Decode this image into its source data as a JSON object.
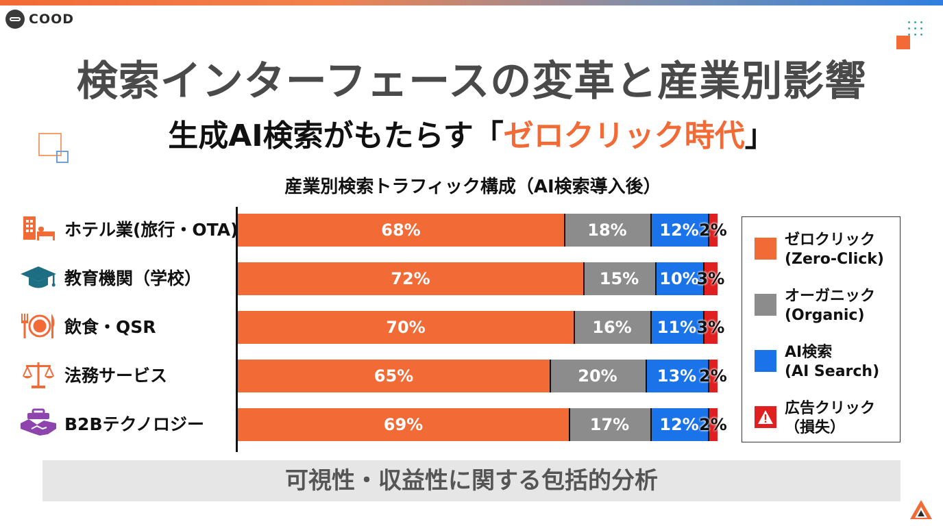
{
  "brand": {
    "logo_text": "COOD"
  },
  "title": "検索インターフェースの変革と産業別影響",
  "subtitle": {
    "prefix": "生成AI検索がもたらす「",
    "highlight": "ゼロクリック時代",
    "suffix": "」"
  },
  "footer": "可視性・収益性に関する包括的分析",
  "colors": {
    "zero_click": "#f26a35",
    "organic": "#8c8c8c",
    "ai_search": "#1a73e8",
    "ad_click": "#e02020",
    "title_gray": "#4a4a4a",
    "icon_orange": "#f26a35",
    "icon_teal": "#1e6e83",
    "icon_purple": "#8e44ad"
  },
  "categories": [
    {
      "label": "ホテル業(旅行・OTA)",
      "icon": "hotel-bed-icon"
    },
    {
      "label": "教育機関（学校）",
      "icon": "graduation-cap-icon"
    },
    {
      "label": "飲食・QSR",
      "icon": "dining-plate-icon"
    },
    {
      "label": "法務サービス",
      "icon": "scales-icon"
    },
    {
      "label": "B2Bテクノロジー",
      "icon": "handshake-briefcase-icon"
    }
  ],
  "legend": [
    {
      "line1": "ゼロクリック",
      "line2": "(Zero-Click)",
      "icon": "orange-square-icon"
    },
    {
      "line1": "オーガニック",
      "line2": "(Organic)",
      "icon": "gray-square-icon"
    },
    {
      "line1": "AI検索",
      "line2": "(AI Search)",
      "icon": "blue-square-icon"
    },
    {
      "line1": "広告クリック",
      "line2": "（損失）",
      "icon": "warning-triangle-icon"
    }
  ],
  "chart_data": {
    "type": "bar",
    "orientation": "horizontal",
    "stacked": true,
    "title": "産業別検索トラフィック構成（AI検索導入後）",
    "categories": [
      "ホテル業(旅行・OTA)",
      "教育機関（学校）",
      "飲食・QSR",
      "法務サービス",
      "B2Bテクノロジー"
    ],
    "series": [
      {
        "name": "ゼロクリック (Zero-Click)",
        "values": [
          68,
          72,
          70,
          65,
          69
        ],
        "labels": [
          "68%",
          "72%",
          "70%",
          "65%",
          "69%"
        ]
      },
      {
        "name": "オーガニック (Organic)",
        "values": [
          18,
          15,
          16,
          20,
          17
        ],
        "labels": [
          "18%",
          "15%",
          "16%",
          "20%",
          "17%"
        ]
      },
      {
        "name": "AI検索 (AI Search)",
        "values": [
          12,
          10,
          11,
          13,
          12
        ],
        "labels": [
          "12%",
          "10%",
          "11%",
          "13%",
          "12%"
        ]
      },
      {
        "name": "広告クリック（損失）",
        "values": [
          2,
          3,
          3,
          2,
          2
        ],
        "labels": [
          "2%",
          "3%",
          "3%",
          "2%",
          "2%"
        ]
      }
    ],
    "xlim": [
      0,
      100
    ],
    "legend_position": "right",
    "grid": false
  }
}
